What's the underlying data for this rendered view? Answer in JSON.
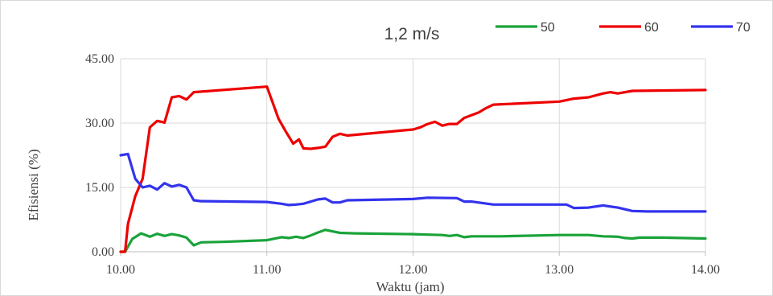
{
  "chart_data": {
    "type": "line",
    "title": "1,2 m/s",
    "xlabel": "Waktu (jam)",
    "ylabel": "Efisiensi  (%)",
    "xlim": [
      10.0,
      14.0
    ],
    "ylim": [
      0,
      45
    ],
    "x_ticks": [
      10.0,
      11.0,
      12.0,
      13.0,
      14.0
    ],
    "x_tick_labels": [
      "10.00",
      "11.00",
      "12.00",
      "13.00",
      "14.00"
    ],
    "y_ticks": [
      0,
      15,
      30,
      45
    ],
    "y_tick_labels": [
      "0.00",
      "15.00",
      "30.00",
      "45.00"
    ],
    "grid": true,
    "legend_position": "top-right",
    "series": [
      {
        "name": "50",
        "color": "#1aa33a",
        "points": [
          [
            10.0,
            0
          ],
          [
            10.03,
            0
          ],
          [
            10.08,
            3
          ],
          [
            10.14,
            4.3
          ],
          [
            10.2,
            3.5
          ],
          [
            10.25,
            4.2
          ],
          [
            10.3,
            3.7
          ],
          [
            10.35,
            4.1
          ],
          [
            10.4,
            3.8
          ],
          [
            10.45,
            3.3
          ],
          [
            10.5,
            1.5
          ],
          [
            10.55,
            2.2
          ],
          [
            10.7,
            2.3
          ],
          [
            11.0,
            2.7
          ],
          [
            11.1,
            3.4
          ],
          [
            11.15,
            3.2
          ],
          [
            11.2,
            3.5
          ],
          [
            11.25,
            3.2
          ],
          [
            11.3,
            3.8
          ],
          [
            11.35,
            4.5
          ],
          [
            11.4,
            5.1
          ],
          [
            11.5,
            4.4
          ],
          [
            11.6,
            4.3
          ],
          [
            12.0,
            4.1
          ],
          [
            12.1,
            4.0
          ],
          [
            12.2,
            3.9
          ],
          [
            12.25,
            3.7
          ],
          [
            12.3,
            3.9
          ],
          [
            12.35,
            3.4
          ],
          [
            12.4,
            3.6
          ],
          [
            12.6,
            3.6
          ],
          [
            13.0,
            3.9
          ],
          [
            13.2,
            3.9
          ],
          [
            13.3,
            3.6
          ],
          [
            13.4,
            3.5
          ],
          [
            13.45,
            3.2
          ],
          [
            13.5,
            3.1
          ],
          [
            13.55,
            3.3
          ],
          [
            13.7,
            3.3
          ],
          [
            14.0,
            3.1
          ]
        ]
      },
      {
        "name": "60",
        "color": "#ee0000",
        "points": [
          [
            10.0,
            0
          ],
          [
            10.03,
            0
          ],
          [
            10.05,
            6.5
          ],
          [
            10.1,
            13
          ],
          [
            10.15,
            17
          ],
          [
            10.2,
            29
          ],
          [
            10.25,
            30.5
          ],
          [
            10.28,
            30.3
          ],
          [
            10.3,
            30.1
          ],
          [
            10.35,
            36
          ],
          [
            10.4,
            36.3
          ],
          [
            10.45,
            35.5
          ],
          [
            10.5,
            37.2
          ],
          [
            11.0,
            38.5
          ],
          [
            11.08,
            31
          ],
          [
            11.13,
            28
          ],
          [
            11.18,
            25.2
          ],
          [
            11.22,
            26.2
          ],
          [
            11.25,
            24.1
          ],
          [
            11.3,
            24
          ],
          [
            11.35,
            24.2
          ],
          [
            11.4,
            24.5
          ],
          [
            11.45,
            26.8
          ],
          [
            11.5,
            27.5
          ],
          [
            11.55,
            27.1
          ],
          [
            12.0,
            28.5
          ],
          [
            12.05,
            29
          ],
          [
            12.1,
            29.8
          ],
          [
            12.15,
            30.3
          ],
          [
            12.2,
            29.4
          ],
          [
            12.25,
            29.8
          ],
          [
            12.3,
            29.8
          ],
          [
            12.35,
            31.2
          ],
          [
            12.45,
            32.5
          ],
          [
            12.5,
            33.5
          ],
          [
            12.55,
            34.3
          ],
          [
            13.0,
            35.0
          ],
          [
            13.1,
            35.7
          ],
          [
            13.2,
            36.0
          ],
          [
            13.3,
            36.9
          ],
          [
            13.35,
            37.2
          ],
          [
            13.4,
            36.9
          ],
          [
            13.5,
            37.5
          ],
          [
            14.0,
            37.7
          ]
        ]
      },
      {
        "name": "70",
        "color": "#3333ee",
        "points": [
          [
            10.0,
            22.5
          ],
          [
            10.05,
            22.8
          ],
          [
            10.1,
            17
          ],
          [
            10.15,
            15
          ],
          [
            10.2,
            15.4
          ],
          [
            10.25,
            14.5
          ],
          [
            10.3,
            16
          ],
          [
            10.35,
            15.2
          ],
          [
            10.4,
            15.6
          ],
          [
            10.45,
            15.0
          ],
          [
            10.5,
            12
          ],
          [
            10.55,
            11.8
          ],
          [
            11.0,
            11.6
          ],
          [
            11.1,
            11.2
          ],
          [
            11.15,
            10.9
          ],
          [
            11.2,
            11
          ],
          [
            11.25,
            11.2
          ],
          [
            11.3,
            11.7
          ],
          [
            11.35,
            12.2
          ],
          [
            11.4,
            12.4
          ],
          [
            11.45,
            11.5
          ],
          [
            11.5,
            11.5
          ],
          [
            11.55,
            12.0
          ],
          [
            12.0,
            12.3
          ],
          [
            12.1,
            12.6
          ],
          [
            12.3,
            12.5
          ],
          [
            12.35,
            11.7
          ],
          [
            12.4,
            11.7
          ],
          [
            12.55,
            11.0
          ],
          [
            13.0,
            11.0
          ],
          [
            13.05,
            11.0
          ],
          [
            13.1,
            10.2
          ],
          [
            13.2,
            10.3
          ],
          [
            13.3,
            10.8
          ],
          [
            13.4,
            10.3
          ],
          [
            13.5,
            9.5
          ],
          [
            13.6,
            9.4
          ],
          [
            14.0,
            9.4
          ]
        ]
      }
    ]
  }
}
